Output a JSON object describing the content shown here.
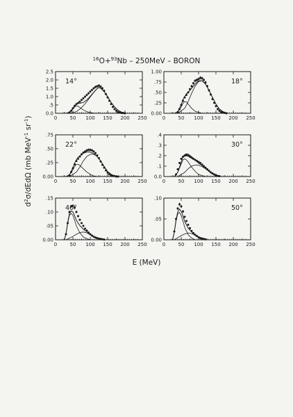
{
  "title": {
    "prefix": "16",
    "p1": "O+",
    "mid": "93",
    "p2": "Nb  –  250MeV  –  BORON"
  },
  "ylabel": {
    "prefix": "d",
    "sup": "2",
    "rest": "σ/dEdΩ  (mb MeV",
    "sup2": "-1",
    "rest2": " sr",
    "sup3": "-1",
    "end": ")"
  },
  "xlabel": "E  (MeV)",
  "colors": {
    "ink": "#1a1a1a",
    "paper": "#f4f4f1"
  },
  "chart_data": [
    {
      "type": "scatter",
      "angle_label": "14°",
      "xlim": [
        0,
        250
      ],
      "ylim": [
        0,
        2.5
      ],
      "xticks": [
        "0",
        "50",
        "100",
        "150",
        "200",
        "250"
      ],
      "yticks": [
        "0.0",
        ".5",
        "1.0",
        "1.5",
        "2.0",
        "2.5"
      ],
      "ytick_values": [
        0,
        0.5,
        1.0,
        1.5,
        2.0,
        2.5
      ],
      "data": {
        "x": [
          40,
          45,
          50,
          55,
          60,
          65,
          70,
          75,
          80,
          85,
          90,
          95,
          100,
          105,
          110,
          115,
          120,
          125,
          130,
          135,
          140,
          145,
          150,
          155,
          160,
          165,
          170,
          175,
          180,
          185,
          190,
          195,
          200
        ],
        "y": [
          0.05,
          0.15,
          0.3,
          0.45,
          0.55,
          0.62,
          0.7,
          0.8,
          0.9,
          1.0,
          1.1,
          1.2,
          1.3,
          1.4,
          1.5,
          1.58,
          1.62,
          1.66,
          1.6,
          1.5,
          1.35,
          1.15,
          0.95,
          0.75,
          0.55,
          0.38,
          0.25,
          0.15,
          0.08,
          0.04,
          0.02,
          0.01,
          0.0
        ]
      },
      "components": [
        {
          "x": [
            30,
            40,
            50,
            55,
            60,
            65,
            70,
            80,
            90,
            100,
            110,
            120
          ],
          "y": [
            0,
            0.05,
            0.25,
            0.38,
            0.45,
            0.42,
            0.35,
            0.2,
            0.1,
            0.04,
            0.01,
            0
          ]
        },
        {
          "x": [
            40,
            60,
            70,
            80,
            90,
            100,
            110,
            120,
            125,
            130,
            140,
            150,
            160,
            170,
            180,
            190,
            200
          ],
          "y": [
            0,
            0.1,
            0.25,
            0.45,
            0.7,
            0.98,
            1.25,
            1.48,
            1.55,
            1.5,
            1.3,
            1.0,
            0.65,
            0.38,
            0.18,
            0.07,
            0.02
          ]
        }
      ]
    },
    {
      "type": "scatter",
      "angle_label": "18°",
      "xlim": [
        0,
        250
      ],
      "ylim": [
        0,
        1.0
      ],
      "xticks": [
        "0",
        "50",
        "100",
        "150",
        "200",
        "250"
      ],
      "yticks": [
        "0.00",
        ".25",
        ".50",
        ".75",
        "1.00"
      ],
      "ytick_values": [
        0,
        0.25,
        0.5,
        0.75,
        1.0
      ],
      "data": {
        "x": [
          40,
          45,
          50,
          55,
          60,
          65,
          70,
          75,
          80,
          85,
          90,
          95,
          100,
          105,
          110,
          115,
          120,
          125,
          130,
          135,
          140,
          145,
          150,
          155,
          160,
          165,
          170,
          175,
          180
        ],
        "y": [
          0.03,
          0.1,
          0.2,
          0.3,
          0.38,
          0.44,
          0.5,
          0.58,
          0.65,
          0.72,
          0.78,
          0.8,
          0.82,
          0.85,
          0.84,
          0.8,
          0.74,
          0.65,
          0.55,
          0.45,
          0.34,
          0.25,
          0.17,
          0.1,
          0.06,
          0.03,
          0.02,
          0.01,
          0.0
        ]
      },
      "components": [
        {
          "x": [
            30,
            40,
            50,
            55,
            60,
            65,
            70,
            80,
            90,
            100,
            110
          ],
          "y": [
            0,
            0.03,
            0.15,
            0.24,
            0.28,
            0.27,
            0.22,
            0.12,
            0.05,
            0.02,
            0
          ]
        },
        {
          "x": [
            40,
            60,
            70,
            80,
            90,
            100,
            110,
            120,
            130,
            140,
            150,
            160,
            170,
            180
          ],
          "y": [
            0,
            0.12,
            0.28,
            0.48,
            0.65,
            0.76,
            0.78,
            0.7,
            0.55,
            0.38,
            0.22,
            0.1,
            0.04,
            0.01
          ]
        }
      ]
    },
    {
      "type": "scatter",
      "angle_label": "22°",
      "xlim": [
        0,
        250
      ],
      "ylim": [
        0,
        0.75
      ],
      "xticks": [
        "0",
        "50",
        "100",
        "150",
        "200",
        "250"
      ],
      "yticks": [
        "0.00",
        ".25",
        ".50",
        ".75"
      ],
      "ytick_values": [
        0,
        0.25,
        0.5,
        0.75
      ],
      "data": {
        "x": [
          40,
          45,
          50,
          55,
          60,
          65,
          70,
          75,
          80,
          85,
          90,
          95,
          100,
          105,
          110,
          115,
          120,
          125,
          130,
          135,
          140,
          145,
          150,
          155,
          160,
          165,
          170,
          175,
          180
        ],
        "y": [
          0.02,
          0.08,
          0.15,
          0.22,
          0.28,
          0.32,
          0.36,
          0.4,
          0.43,
          0.45,
          0.47,
          0.48,
          0.48,
          0.47,
          0.45,
          0.42,
          0.38,
          0.33,
          0.27,
          0.21,
          0.16,
          0.11,
          0.07,
          0.04,
          0.02,
          0.01,
          0.01,
          0.0,
          0.0
        ]
      },
      "components": [
        {
          "x": [
            30,
            40,
            50,
            55,
            60,
            65,
            70,
            80,
            90,
            100,
            110,
            120
          ],
          "y": [
            0,
            0.03,
            0.12,
            0.18,
            0.22,
            0.22,
            0.2,
            0.14,
            0.08,
            0.04,
            0.01,
            0
          ]
        },
        {
          "x": [
            40,
            60,
            70,
            80,
            90,
            100,
            110,
            120,
            130,
            140,
            150,
            160,
            170
          ],
          "y": [
            0,
            0.08,
            0.17,
            0.28,
            0.36,
            0.4,
            0.4,
            0.36,
            0.28,
            0.18,
            0.09,
            0.04,
            0.01
          ]
        }
      ]
    },
    {
      "type": "scatter",
      "angle_label": "30°",
      "xlim": [
        0,
        250
      ],
      "ylim": [
        0,
        0.4
      ],
      "xticks": [
        "0",
        "50",
        "100",
        "150",
        "200",
        "250"
      ],
      "yticks": [
        "0.0",
        ".1",
        ".2",
        ".3",
        ".4"
      ],
      "ytick_values": [
        0,
        0.1,
        0.2,
        0.3,
        0.4
      ],
      "data": {
        "x": [
          35,
          40,
          45,
          50,
          55,
          60,
          65,
          70,
          75,
          80,
          85,
          90,
          95,
          100,
          105,
          110,
          115,
          120,
          125,
          130,
          135,
          140,
          145,
          150,
          155,
          160
        ],
        "y": [
          0.02,
          0.07,
          0.13,
          0.17,
          0.19,
          0.2,
          0.205,
          0.2,
          0.19,
          0.18,
          0.17,
          0.16,
          0.15,
          0.14,
          0.13,
          0.115,
          0.1,
          0.085,
          0.07,
          0.055,
          0.04,
          0.03,
          0.02,
          0.012,
          0.006,
          0.003
        ]
      },
      "components": [
        {
          "x": [
            30,
            40,
            50,
            55,
            60,
            65,
            70,
            80,
            90,
            100,
            110,
            120
          ],
          "y": [
            0,
            0.04,
            0.12,
            0.16,
            0.17,
            0.16,
            0.14,
            0.09,
            0.05,
            0.02,
            0.01,
            0
          ]
        },
        {
          "x": [
            40,
            60,
            70,
            80,
            90,
            100,
            110,
            120,
            130,
            140,
            150,
            160
          ],
          "y": [
            0,
            0.04,
            0.075,
            0.1,
            0.11,
            0.108,
            0.095,
            0.075,
            0.05,
            0.03,
            0.015,
            0.005
          ]
        }
      ]
    },
    {
      "type": "scatter",
      "angle_label": "40°",
      "xlim": [
        0,
        250
      ],
      "ylim": [
        0,
        0.15
      ],
      "xticks": [
        "0",
        "50",
        "100",
        "150",
        "200",
        "250"
      ],
      "yticks": [
        "0.00",
        ".05",
        ".10",
        ".15"
      ],
      "ytick_values": [
        0,
        0.05,
        0.1,
        0.15
      ],
      "data": {
        "x": [
          30,
          35,
          40,
          45,
          50,
          55,
          60,
          65,
          70,
          75,
          80,
          85,
          90,
          95,
          100,
          105,
          110,
          115,
          120,
          125,
          130,
          135,
          140
        ],
        "y": [
          0.02,
          0.06,
          0.1,
          0.12,
          0.122,
          0.115,
          0.1,
          0.085,
          0.072,
          0.06,
          0.05,
          0.04,
          0.033,
          0.026,
          0.02,
          0.015,
          0.011,
          0.008,
          0.006,
          0.004,
          0.003,
          0.002,
          0.001
        ]
      },
      "components": [
        {
          "x": [
            25,
            30,
            35,
            40,
            45,
            50,
            55,
            60,
            70,
            80,
            90,
            100
          ],
          "y": [
            0,
            0.02,
            0.06,
            0.088,
            0.095,
            0.088,
            0.07,
            0.05,
            0.025,
            0.01,
            0.004,
            0
          ]
        },
        {
          "x": [
            30,
            50,
            60,
            70,
            80,
            90,
            100,
            110,
            120,
            130,
            140
          ],
          "y": [
            0,
            0.012,
            0.02,
            0.026,
            0.028,
            0.025,
            0.018,
            0.011,
            0.006,
            0.003,
            0.001
          ]
        }
      ]
    },
    {
      "type": "scatter",
      "angle_label": "50°",
      "xlim": [
        0,
        250
      ],
      "ylim": [
        0,
        0.1
      ],
      "xticks": [
        "0",
        "50",
        "100",
        "150",
        "200",
        "250"
      ],
      "yticks": [
        "0.00",
        ".05",
        ".10"
      ],
      "ytick_values": [
        0,
        0.05,
        0.1
      ],
      "data": {
        "x": [
          30,
          35,
          40,
          45,
          50,
          55,
          60,
          65,
          70,
          75,
          80,
          85,
          90,
          95,
          100,
          105,
          110,
          115,
          120
        ],
        "y": [
          0.02,
          0.05,
          0.075,
          0.085,
          0.08,
          0.068,
          0.055,
          0.045,
          0.036,
          0.028,
          0.021,
          0.016,
          0.012,
          0.009,
          0.006,
          0.004,
          0.003,
          0.002,
          0.001
        ]
      },
      "components": [
        {
          "x": [
            25,
            30,
            35,
            40,
            45,
            50,
            55,
            60,
            70,
            80,
            90
          ],
          "y": [
            0,
            0.018,
            0.045,
            0.062,
            0.066,
            0.058,
            0.045,
            0.03,
            0.012,
            0.004,
            0
          ]
        },
        {
          "x": [
            30,
            50,
            60,
            70,
            80,
            90,
            100,
            110,
            120
          ],
          "y": [
            0,
            0.01,
            0.014,
            0.016,
            0.015,
            0.011,
            0.007,
            0.004,
            0.001
          ]
        }
      ]
    }
  ]
}
